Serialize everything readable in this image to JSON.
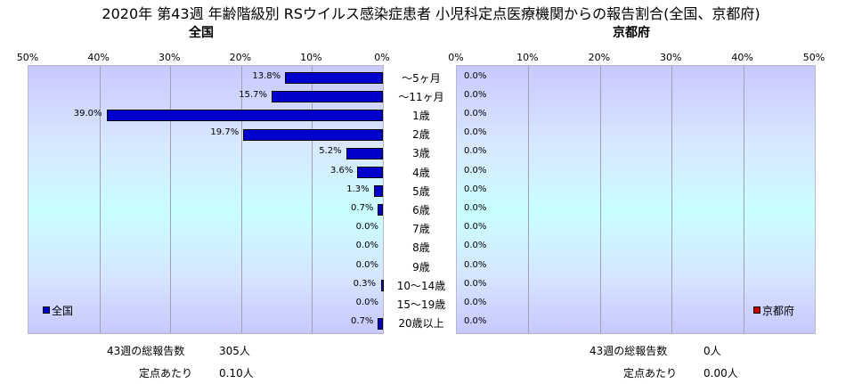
{
  "title": "2020年 第43週 年齢階級別 RSウイルス感染症患者 小児科定点医療機関からの報告割合(全国、京都府)",
  "chart_data": {
    "type": "bar",
    "orientation": "horizontal",
    "categories": [
      "～5ヶ月",
      "～11ヶ月",
      "1歳",
      "2歳",
      "3歳",
      "4歳",
      "5歳",
      "6歳",
      "7歳",
      "8歳",
      "9歳",
      "10～14歳",
      "15～19歳",
      "20歳以上"
    ],
    "xlim": [
      0,
      50
    ],
    "ticks": [
      "0%",
      "10%",
      "20%",
      "30%",
      "40%",
      "50%"
    ],
    "series": [
      {
        "name": "全国",
        "panel_title": "全国",
        "color": "#0000cc",
        "values": [
          13.8,
          15.7,
          39.0,
          19.7,
          5.2,
          3.6,
          1.3,
          0.7,
          0.0,
          0.0,
          0.0,
          0.3,
          0.0,
          0.7
        ],
        "labels": [
          "13.8%",
          "15.7%",
          "39.0%",
          "19.7%",
          "5.2%",
          "3.6%",
          "1.3%",
          "0.7%",
          "0.0%",
          "0.0%",
          "0.0%",
          "0.3%",
          "0.0%",
          "0.7%"
        ]
      },
      {
        "name": "京都府",
        "panel_title": "京都府",
        "color": "#cc0000",
        "values": [
          0,
          0,
          0,
          0,
          0,
          0,
          0,
          0,
          0,
          0,
          0,
          0,
          0,
          0
        ],
        "labels": [
          "0.0%",
          "0.0%",
          "0.0%",
          "0.0%",
          "0.0%",
          "0.0%",
          "0.0%",
          "0.0%",
          "0.0%",
          "0.0%",
          "0.0%",
          "0.0%",
          "0.0%",
          "0.0%"
        ]
      }
    ],
    "legend_placement": "bottom-left / bottom-right inside panels",
    "grid": true
  },
  "stats": {
    "national": {
      "total_label": "43週の総報告数",
      "total_value": "305人",
      "per_label": "定点あたり",
      "per_value": "0.10人"
    },
    "kyoto": {
      "total_label": "43週の総報告数",
      "total_value": "0人",
      "per_label": "定点あたり",
      "per_value": "0.00人"
    }
  }
}
